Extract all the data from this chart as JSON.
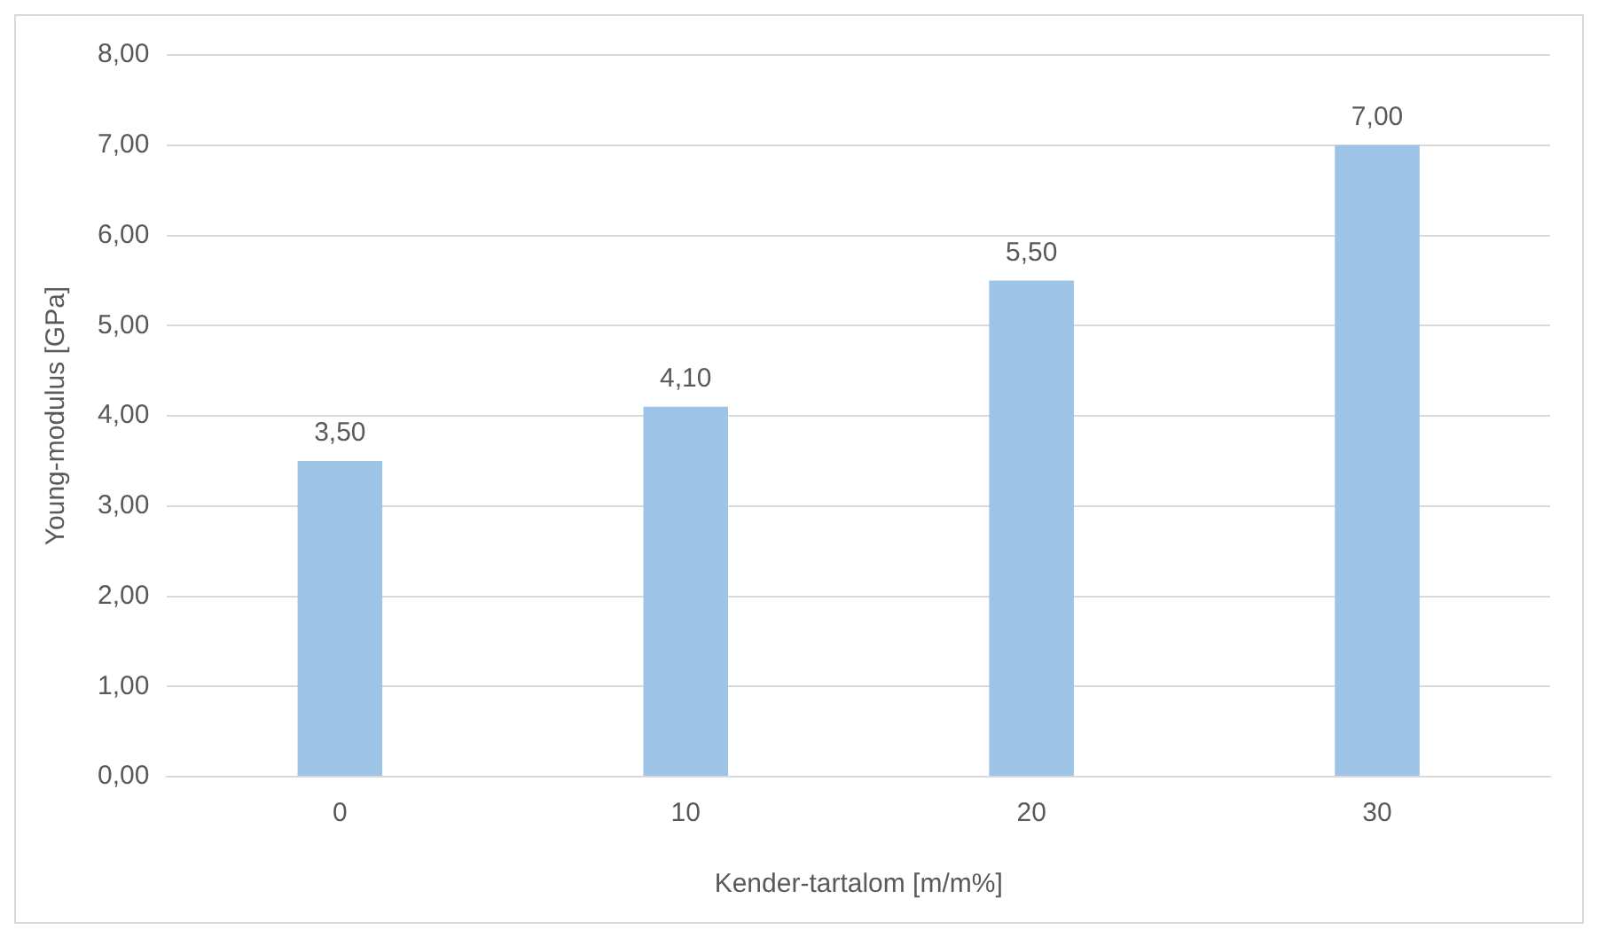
{
  "chart_data": {
    "type": "bar",
    "xlabel": "Kender-tartalom [m/m%]",
    "ylabel": "Young-modulus [GPa]",
    "categories": [
      "0",
      "10",
      "20",
      "30"
    ],
    "values": [
      3.5,
      4.1,
      5.5,
      7.0
    ],
    "value_labels": [
      "3,50",
      "4,10",
      "5,50",
      "7,00"
    ],
    "color": "#9dc3e6",
    "ylim": [
      0,
      8
    ],
    "yticks": [
      {
        "value": 0,
        "label": "0,00"
      },
      {
        "value": 1,
        "label": "1,00"
      },
      {
        "value": 2,
        "label": "2,00"
      },
      {
        "value": 3,
        "label": "3,00"
      },
      {
        "value": 4,
        "label": "4,00"
      },
      {
        "value": 5,
        "label": "5,00"
      },
      {
        "value": 6,
        "label": "6,00"
      },
      {
        "value": 7,
        "label": "7,00"
      },
      {
        "value": 8,
        "label": "8,00"
      }
    ],
    "grid": "y",
    "legend": false
  }
}
